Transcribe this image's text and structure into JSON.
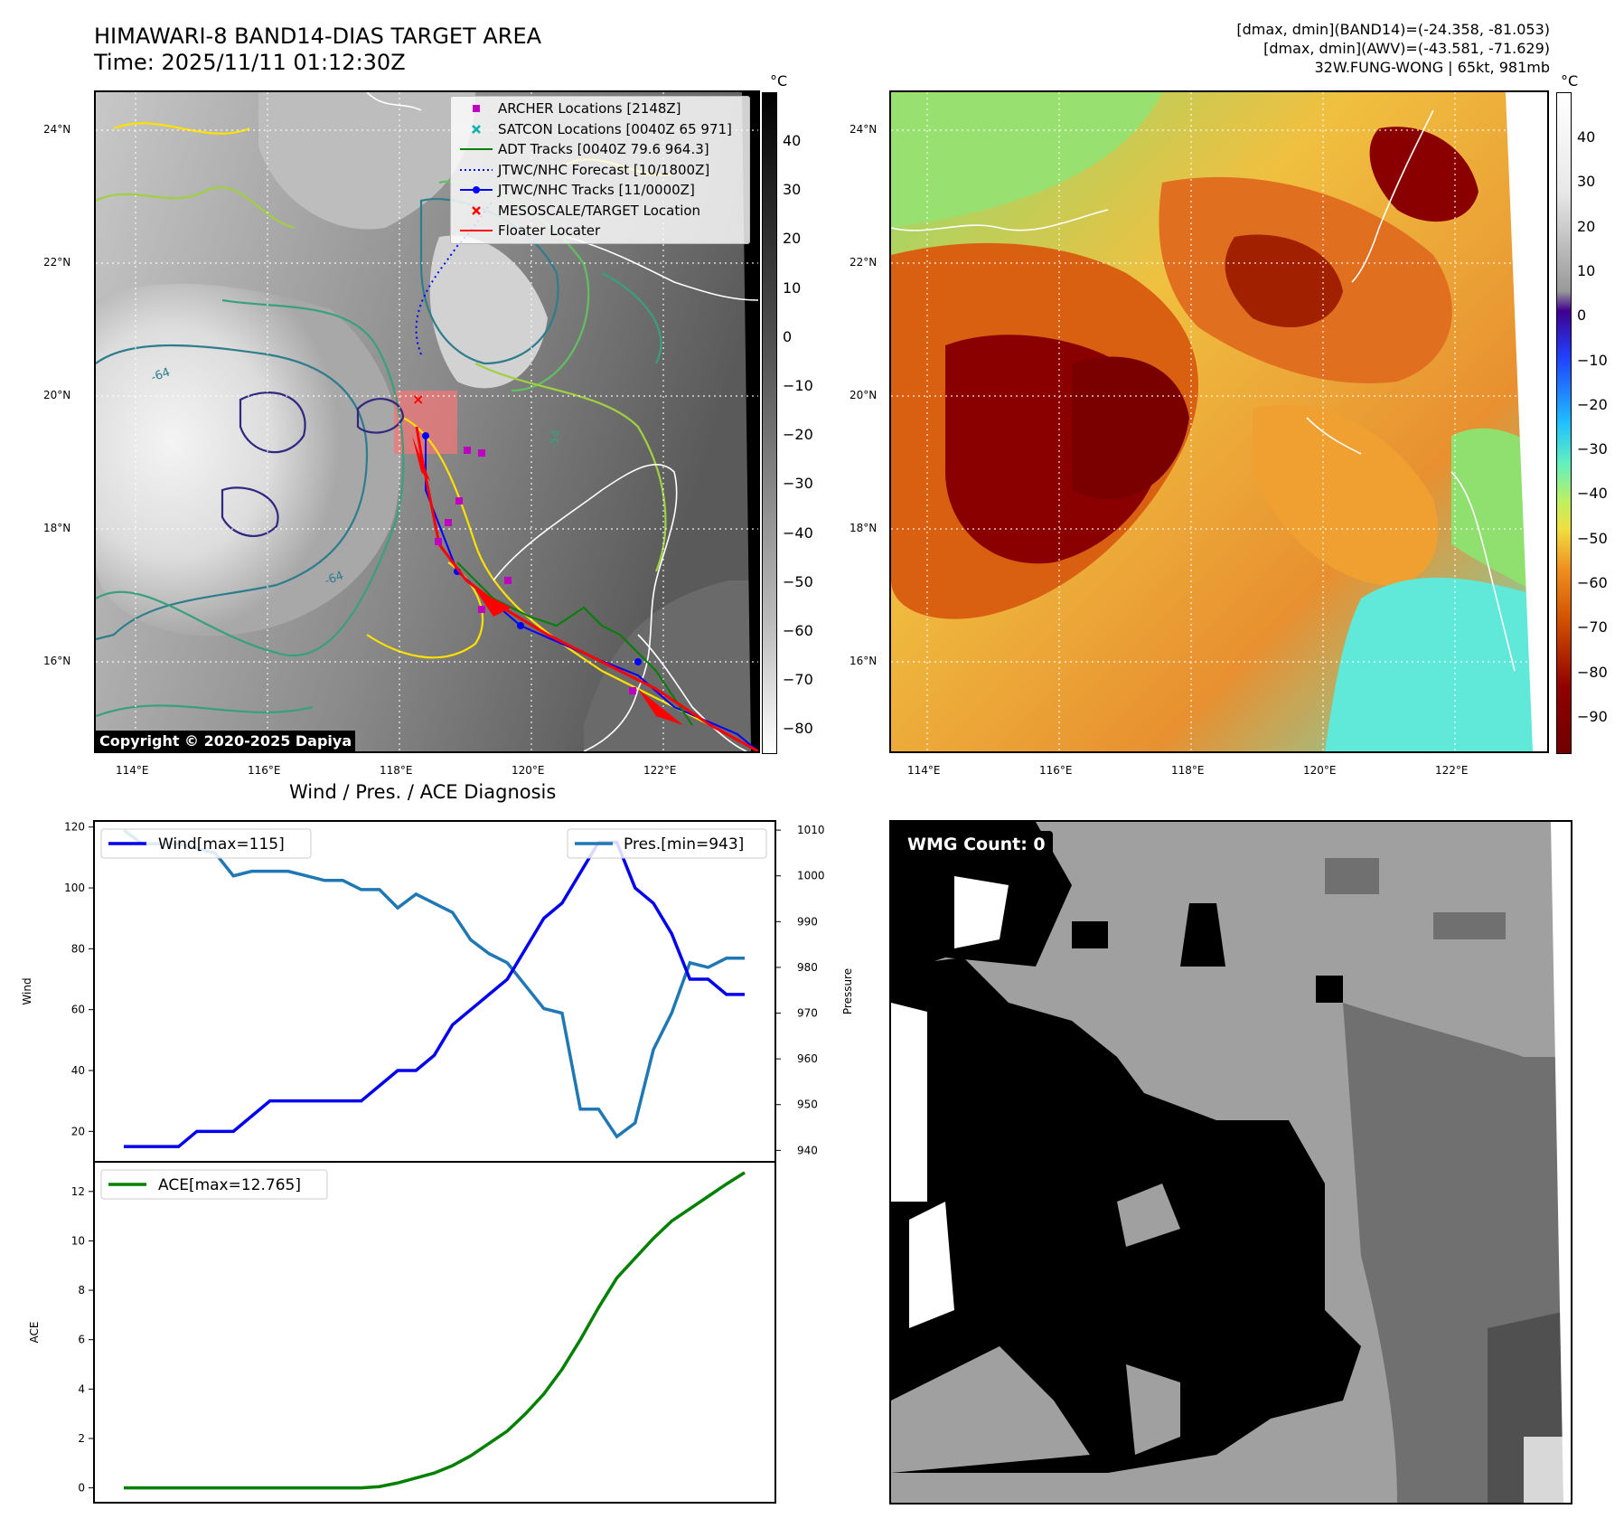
{
  "header": {
    "title_line1": "HIMAWARI-8 BAND14-DIAS TARGET AREA",
    "title_line2": "Time: 2025/11/11 01:12:30Z",
    "info_line1": "[dmax, dmin](BAND14)=(-24.358, -81.053)",
    "info_line2": "[dmax, dmin](AWV)=(-43.581, -71.629)",
    "info_line3": "32W.FUNG-WONG | 65kt, 981mb"
  },
  "map": {
    "lon_ticks": [
      "114°E",
      "116°E",
      "118°E",
      "120°E",
      "122°E"
    ],
    "lat_ticks": [
      "24°N",
      "22°N",
      "20°N",
      "18°N",
      "16°N"
    ],
    "copyright": "Copyright © 2020-2025 Dapiya",
    "contour_labels": [
      "-64",
      "-64",
      "-54"
    ],
    "legend": [
      {
        "label": "ARCHER Locations [2148Z]",
        "color": "#c000c0",
        "marker": "square"
      },
      {
        "label": "SATCON Locations [0040Z 65 971]",
        "color": "#00b0b0",
        "marker": "x"
      },
      {
        "label": "ADT Tracks [0040Z 79.6 964.3]",
        "color": "#008000",
        "marker": "line"
      },
      {
        "label": "JTWC/NHC Forecast [10/1800Z]",
        "color": "#0000ff",
        "marker": "dotted"
      },
      {
        "label": "JTWC/NHC Tracks [11/0000Z]",
        "color": "#0000ff",
        "marker": "line-dot"
      },
      {
        "label": "MESOSCALE/TARGET Location",
        "color": "#ff0000",
        "marker": "x"
      },
      {
        "label": "Floater Locater",
        "color": "#ff0000",
        "marker": "line"
      }
    ]
  },
  "colorbar_left": {
    "unit": "°C",
    "ticks": [
      "40",
      "30",
      "20",
      "10",
      "0",
      "−10",
      "−20",
      "−30",
      "−40",
      "−50",
      "−60",
      "−70",
      "−80"
    ]
  },
  "colorbar_right": {
    "unit": "°C",
    "ticks": [
      "40",
      "30",
      "20",
      "10",
      "0",
      "−10",
      "−20",
      "−30",
      "−40",
      "−50",
      "−60",
      "−70",
      "−80",
      "−90"
    ]
  },
  "wmg": {
    "label": "WMG Count: 0",
    "colors": [
      "#000000",
      "#a0a0a0",
      "#707070",
      "#ffffff",
      "#505050",
      "#d8d8d8"
    ]
  },
  "chart_data": [
    {
      "type": "line",
      "title": "Wind / Pres. / ACE Diagnosis",
      "ylabel": "Wind",
      "y2label": "Pressure",
      "ylim": [
        10,
        122
      ],
      "y2lim": [
        937.5,
        1012
      ],
      "yticks": [
        20,
        40,
        60,
        80,
        100,
        120
      ],
      "y2ticks": [
        940,
        950,
        960,
        970,
        980,
        990,
        1000,
        1010
      ],
      "legend_position": "top-left / top-right",
      "series": [
        {
          "name": "Wind[max=115]",
          "color": "#0000ee",
          "axis": "left",
          "values": [
            15,
            15,
            15,
            15,
            20,
            20,
            20,
            25,
            30,
            30,
            30,
            30,
            30,
            30,
            35,
            40,
            40,
            45,
            55,
            60,
            65,
            70,
            80,
            90,
            95,
            105,
            115,
            115,
            100,
            95,
            85,
            70,
            70,
            65,
            65
          ]
        },
        {
          "name": "Pres.[min=943]",
          "color": "#1f77b4",
          "axis": "right",
          "values": [
            1010,
            1007,
            1007,
            1007,
            1006,
            1005,
            1000,
            1001,
            1001,
            1001,
            1000,
            999,
            999,
            997,
            997,
            993,
            996,
            994,
            992,
            986,
            983,
            981,
            976,
            971,
            970,
            949,
            949,
            943,
            946,
            962,
            970,
            981,
            980,
            982,
            982
          ]
        }
      ]
    },
    {
      "type": "line",
      "ylabel": "ACE",
      "ylim": [
        -0.6,
        13.2
      ],
      "yticks": [
        0,
        2,
        4,
        6,
        8,
        10,
        12
      ],
      "legend_position": "top-left",
      "series": [
        {
          "name": "ACE[max=12.765]",
          "color": "#008000",
          "values": [
            0,
            0,
            0,
            0,
            0,
            0,
            0,
            0,
            0,
            0,
            0,
            0,
            0,
            0,
            0.05,
            0.2,
            0.4,
            0.6,
            0.9,
            1.3,
            1.8,
            2.3,
            3.0,
            3.8,
            4.8,
            6.0,
            7.3,
            8.5,
            9.3,
            10.1,
            10.8,
            11.3,
            11.8,
            12.3,
            12.765
          ]
        }
      ]
    }
  ]
}
